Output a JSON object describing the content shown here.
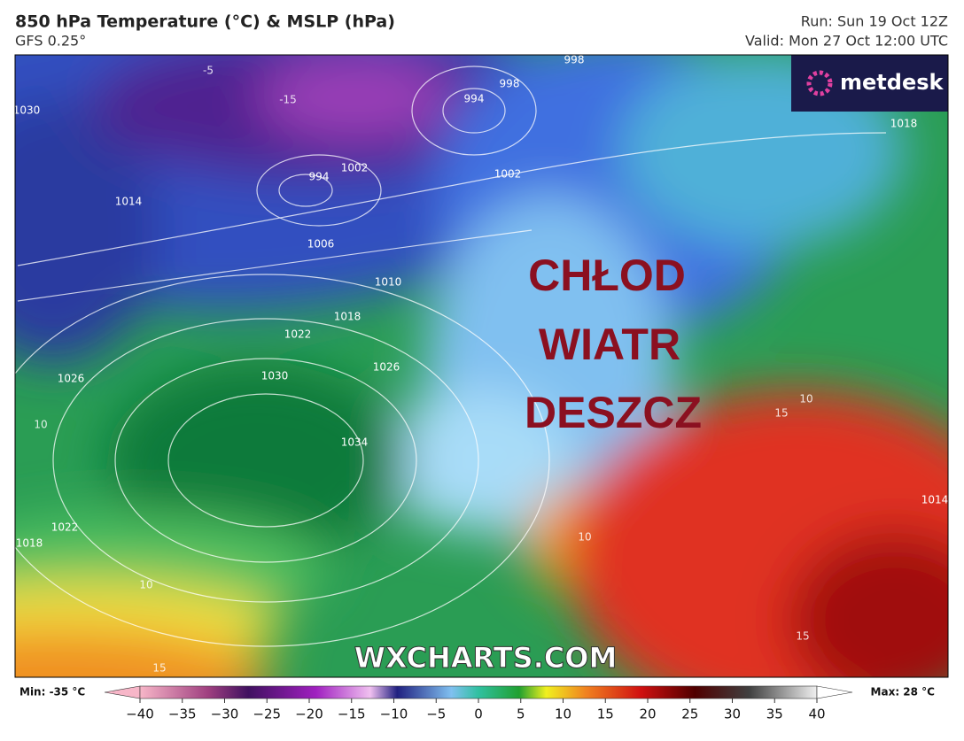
{
  "header": {
    "title": "850 hPa Temperature (°C) & MSLP (hPa)",
    "model": "GFS 0.25°",
    "run": "Run: Sun 19 Oct 12Z",
    "valid": "Valid: Mon 27 Oct 12:00 UTC"
  },
  "logo": "metdesk",
  "map": {
    "annotations": [
      "CHŁOD",
      "WIATR",
      "DESZCZ"
    ],
    "watermark": "WXCHARTS.COM",
    "isobar_labels": [
      "994",
      "998",
      "1002",
      "994",
      "1002",
      "1006",
      "1010",
      "1014",
      "1018",
      "1022",
      "1026",
      "1030",
      "1034",
      "1026",
      "1022",
      "1018",
      "1014",
      "1018",
      "1030",
      "998"
    ],
    "temperature_labels": [
      "-5",
      "-15",
      "10",
      "10",
      "15",
      "10",
      "15",
      "10",
      "15"
    ]
  },
  "colorbar": {
    "min_label": "Min: -35 °C",
    "max_label": "Max: 28 °C",
    "range": [
      -40,
      40
    ],
    "ticks": [
      {
        "value": -40,
        "label": "−40"
      },
      {
        "value": -35,
        "label": "−35"
      },
      {
        "value": -30,
        "label": "−30"
      },
      {
        "value": -25,
        "label": "−25"
      },
      {
        "value": -20,
        "label": "−20"
      },
      {
        "value": -15,
        "label": "−15"
      },
      {
        "value": -10,
        "label": "−10"
      },
      {
        "value": -5,
        "label": "−5"
      },
      0,
      5,
      10,
      15,
      20,
      25,
      30,
      35,
      40
    ]
  }
}
